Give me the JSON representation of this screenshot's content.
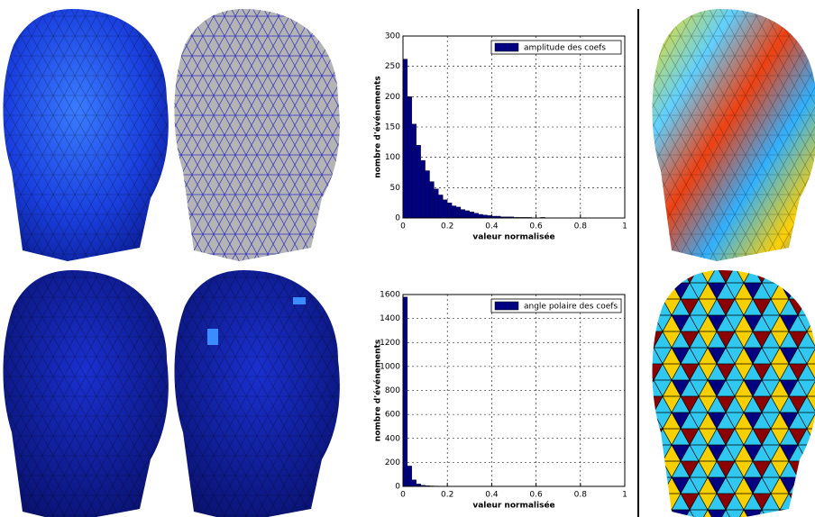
{
  "chart_data": [
    {
      "type": "histogram",
      "xlabel": "valeur normalisée",
      "ylabel": "nombre d'événements",
      "bins": [
        0,
        0.02,
        0.04,
        0.06,
        0.08,
        0.1,
        0.12,
        0.14,
        0.16,
        0.18,
        0.2,
        0.22,
        0.24,
        0.26,
        0.28,
        0.3,
        0.32,
        0.34,
        0.36,
        0.38,
        0.4,
        0.42,
        0.44,
        0.46,
        0.48,
        0.5,
        0.52,
        0.54,
        0.56,
        0.58,
        0.6,
        0.62,
        0.64,
        0.66,
        0.68,
        0.7,
        0.72,
        0.74,
        0.76,
        0.78,
        0.8,
        0.82,
        0.84,
        0.86,
        0.88,
        0.9,
        0.92,
        0.94,
        0.96,
        0.98,
        1
      ],
      "series": [
        {
          "name": "amplitude des coefs",
          "color": "#000080",
          "values": [
            262,
            200,
            155,
            120,
            95,
            78,
            60,
            48,
            38,
            30,
            25,
            20,
            18,
            14,
            12,
            10,
            8,
            6,
            5,
            4,
            3,
            3,
            2,
            2,
            2,
            1,
            1,
            1,
            1,
            0,
            0,
            1,
            0,
            0,
            0,
            0,
            0,
            0,
            0,
            0,
            0,
            0,
            0,
            0,
            0,
            0,
            0,
            0,
            0,
            0
          ]
        }
      ],
      "xlim": [
        0,
        1
      ],
      "ylim": [
        0,
        300
      ],
      "xticks": [
        0,
        0.2,
        0.4,
        0.6,
        0.8,
        1
      ],
      "yticks": [
        0,
        50,
        100,
        150,
        200,
        250,
        300
      ],
      "grid": true,
      "legend": "upper right"
    },
    {
      "type": "histogram",
      "xlabel": "valeur normalisée",
      "ylabel": "nombre d'événements",
      "bins": [
        0,
        0.02,
        0.04,
        0.06,
        0.08,
        0.1,
        0.12,
        0.14,
        0.16,
        0.18,
        0.2,
        0.22,
        0.24,
        0.26,
        0.28,
        0.3,
        0.32,
        0.34,
        0.36,
        0.38,
        0.4,
        0.42,
        0.44,
        0.46,
        0.48,
        0.5,
        0.52,
        0.54,
        0.56,
        0.58,
        0.6,
        0.62,
        0.64,
        0.66,
        0.68,
        0.7,
        0.72,
        0.74,
        0.76,
        0.78,
        0.8,
        0.82,
        0.84,
        0.86,
        0.88,
        0.9,
        0.92,
        0.94,
        0.96,
        0.98,
        1
      ],
      "series": [
        {
          "name": "angle polaire des coefs",
          "color": "#000080",
          "values": [
            1580,
            170,
            55,
            20,
            10,
            6,
            4,
            3,
            2,
            2,
            1,
            1,
            1,
            0,
            1,
            0,
            0,
            1,
            0,
            0,
            1,
            0,
            0,
            0,
            0,
            0,
            1,
            0,
            0,
            0,
            0,
            0,
            0,
            0,
            0,
            0,
            0,
            0,
            0,
            0,
            0,
            0,
            0,
            0,
            0,
            0,
            0,
            0,
            0,
            1
          ]
        }
      ],
      "xlim": [
        0,
        1
      ],
      "ylim": [
        0,
        1600
      ],
      "xticks": [
        0,
        0.2,
        0.4,
        0.6,
        0.8,
        1
      ],
      "yticks": [
        0,
        200,
        400,
        600,
        800,
        1000,
        1200,
        1400,
        1600
      ],
      "grid": true,
      "legend": "upper right"
    }
  ]
}
